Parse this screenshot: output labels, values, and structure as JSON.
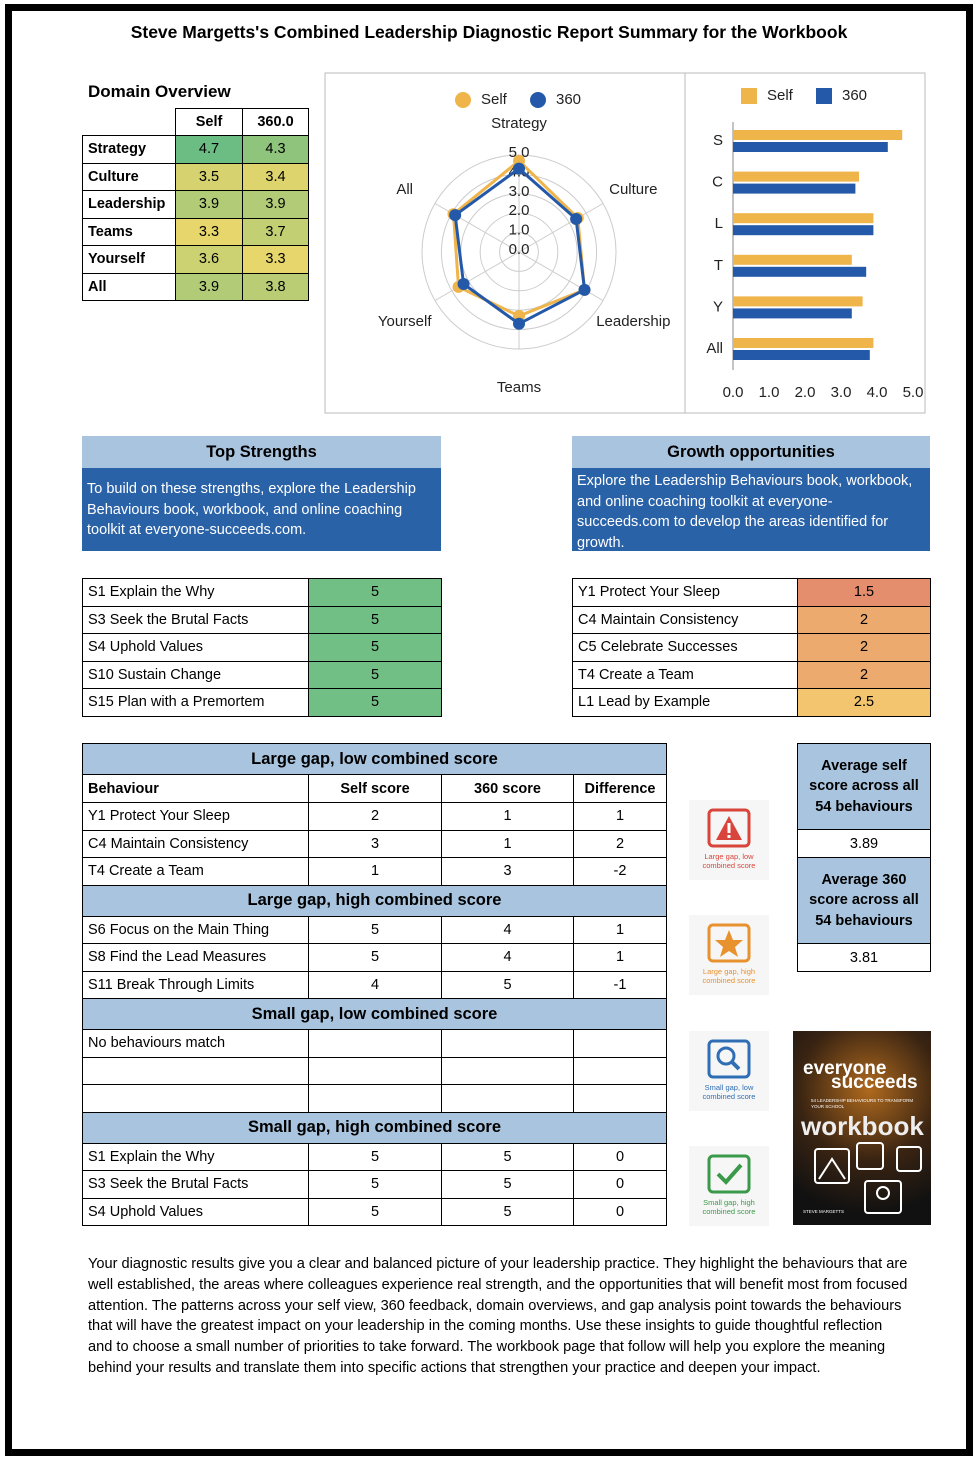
{
  "title": "Steve Margetts's Combined Leadership Diagnostic Report Summary for the Workbook",
  "domain_overview": {
    "title": "Domain Overview",
    "columns": [
      "Self",
      "360.0"
    ],
    "rows": [
      [
        "Strategy",
        4.7,
        4.3
      ],
      [
        "Culture",
        3.5,
        3.4
      ],
      [
        "Leadership",
        3.9,
        3.9
      ],
      [
        "Teams",
        3.3,
        3.7
      ],
      [
        "Yourself",
        3.6,
        3.3
      ],
      [
        "All",
        3.9,
        3.8
      ]
    ]
  },
  "chart_data": [
    {
      "type": "radar",
      "categories": [
        "Strategy",
        "Culture",
        "Leadership",
        "Teams",
        "Yourself",
        "All"
      ],
      "series": [
        {
          "name": "Self",
          "color": "#efb44a",
          "values": [
            4.7,
            3.5,
            3.9,
            3.3,
            3.6,
            3.9
          ]
        },
        {
          "name": "360",
          "color": "#2359a8",
          "values": [
            4.3,
            3.4,
            3.9,
            3.7,
            3.3,
            3.8
          ]
        }
      ],
      "rlim": [
        0,
        5
      ],
      "rticks": [
        {
          "value": 0,
          "label": "0.0"
        },
        {
          "value": 1,
          "label": "1.0"
        },
        {
          "value": 2,
          "label": "2.0"
        },
        {
          "value": 3,
          "label": "3.0"
        },
        {
          "value": 4,
          "label": "4.0"
        },
        {
          "value": 5,
          "label": "5.0"
        }
      ],
      "grid": true,
      "legend": "top"
    },
    {
      "type": "barh",
      "categories": [
        "S",
        "C",
        "L",
        "T",
        "Y",
        "All"
      ],
      "series": [
        {
          "name": "Self",
          "color": "#efb44a",
          "values": [
            4.7,
            3.5,
            3.9,
            3.3,
            3.6,
            3.9
          ]
        },
        {
          "name": "360",
          "color": "#2359a8",
          "values": [
            4.3,
            3.4,
            3.9,
            3.7,
            3.3,
            3.8
          ]
        }
      ],
      "xlim": [
        0,
        5
      ],
      "xticks": [
        {
          "value": 0,
          "label": "0.0"
        },
        {
          "value": 1,
          "label": "1.0"
        },
        {
          "value": 2,
          "label": "2.0"
        },
        {
          "value": 3,
          "label": "3.0"
        },
        {
          "value": 4,
          "label": "4.0"
        },
        {
          "value": 5,
          "label": "5.0"
        }
      ],
      "grid": false,
      "legend": "top"
    }
  ],
  "top_strengths": {
    "title": "Top Strengths",
    "text": "To build on these strengths, explore the Leadership Behaviours book, workbook, and online coaching toolkit at everyone-succeeds.com.",
    "rows": [
      [
        "S1 Explain the Why",
        5
      ],
      [
        "S3 Seek the Brutal Facts",
        5
      ],
      [
        "S4 Uphold Values",
        5
      ],
      [
        "S10 Sustain Change",
        5
      ],
      [
        "S15 Plan with a Premortem",
        5
      ]
    ]
  },
  "growth_opportunities": {
    "title": "Growth opportunities",
    "text": "Explore the Leadership Behaviours book, workbook, and online coaching toolkit at everyone-succeeds.com to develop the areas identified for growth.",
    "rows": [
      [
        "Y1 Protect Your Sleep",
        1.5
      ],
      [
        "C4 Maintain Consistency",
        2
      ],
      [
        "C5 Celebrate Successes",
        2
      ],
      [
        "T4 Create a Team",
        2
      ],
      [
        "L1 Lead by Example",
        2.5
      ]
    ]
  },
  "gap_analysis": {
    "columns": [
      "Behaviour",
      "Self score",
      "360 score",
      "Difference"
    ],
    "sections": [
      {
        "title": "Large gap, low combined score",
        "rows": [
          [
            "Y1 Protect Your Sleep",
            2,
            1,
            1
          ],
          [
            "C4 Maintain Consistency",
            3,
            1,
            2
          ],
          [
            "T4 Create a Team",
            1,
            3,
            -2
          ]
        ]
      },
      {
        "title": "Large gap, high combined score",
        "rows": [
          [
            "S6 Focus on the Main Thing",
            5,
            4,
            1
          ],
          [
            "S8 Find the Lead Measures",
            5,
            4,
            1
          ],
          [
            "S11 Break Through Limits",
            4,
            5,
            -1
          ]
        ]
      },
      {
        "title": "Small gap, low combined score",
        "rows": [
          [
            "No behaviours match"
          ]
        ]
      },
      {
        "title": "Small gap, high combined score",
        "rows": [
          [
            "S1 Explain the Why",
            5,
            5,
            0
          ],
          [
            "S3 Seek the Brutal Facts",
            5,
            5,
            0
          ],
          [
            "S4 Uphold Values",
            5,
            5,
            0
          ]
        ]
      }
    ]
  },
  "icon_captions": [
    "Large gap, low combined score",
    "Large gap, high combined score",
    "Small gap, low combined score",
    "Small gap, high combined score"
  ],
  "averages": [
    {
      "label": "Average self score across all 54 behaviours",
      "value": 3.89
    },
    {
      "label": "Average 360 score across all 54 behaviours",
      "value": 3.81
    }
  ],
  "book_cover": {
    "brand": [
      "everyone",
      "succeeds"
    ],
    "subtitle": "54 LEADERSHIP BEHAVIOURS TO TRANSFORM YOUR SCHOOL",
    "title": "workbook",
    "author": "STEVE MARGETTS"
  },
  "summary": "Your diagnostic results give you a clear and balanced picture of your leadership practice. They highlight the behaviours that are well established, the areas where colleagues experience real strength, and the opportunities that will benefit most from focused attention. The patterns across your self view, 360 feedback, domain overviews, and gap analysis point towards the behaviours that will have the greatest impact on your leadership in the coming months. Use these insights to guide thoughtful reflection and to choose a small number of priorities to take forward. The workbook page that follow will help you explore the meaning behind your results and translate them into specific actions that strengthen your practice and deepen your impact."
}
